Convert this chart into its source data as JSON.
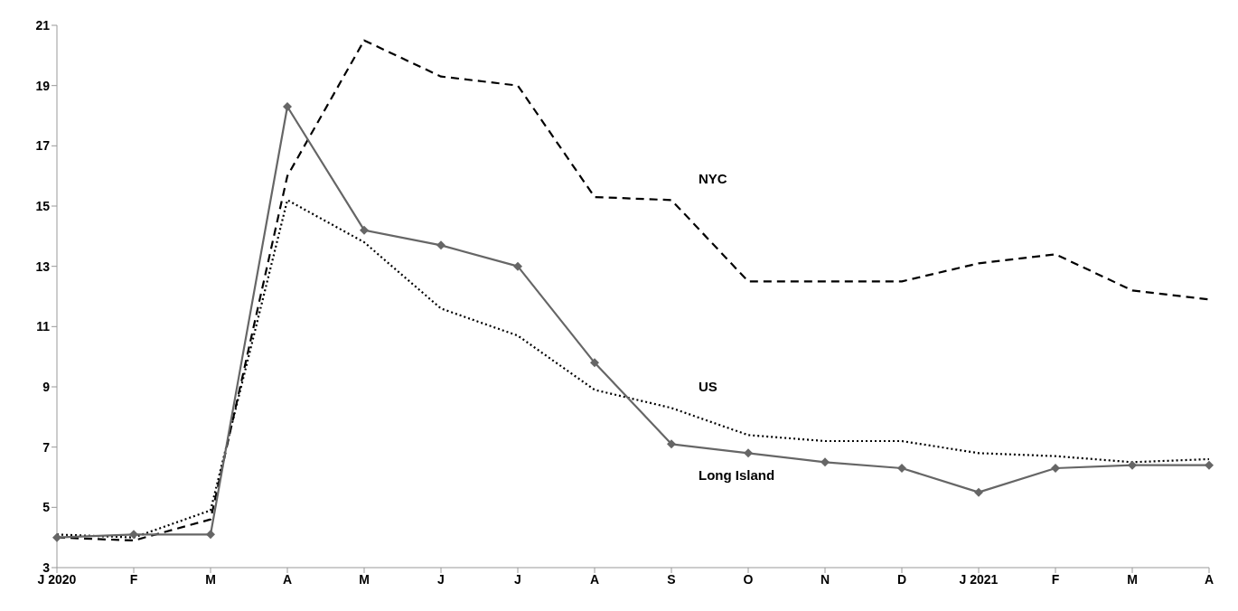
{
  "chart_data": {
    "type": "line",
    "categories": [
      "J 2020",
      "F",
      "M",
      "A",
      "M",
      "J",
      "J",
      "A",
      "S",
      "O",
      "N",
      "D",
      "J 2021",
      "F",
      "M",
      "A"
    ],
    "series": [
      {
        "name": "NYC",
        "color": "#000000",
        "line_style": "dashed",
        "marker": "none",
        "values": [
          4.0,
          3.9,
          4.6,
          16.0,
          20.5,
          19.3,
          19.0,
          15.3,
          15.2,
          12.5,
          12.5,
          12.5,
          13.1,
          13.4,
          12.2,
          11.9
        ]
      },
      {
        "name": "US",
        "color": "#000000",
        "line_style": "dotted",
        "marker": "none",
        "values": [
          4.1,
          4.0,
          4.9,
          15.2,
          13.8,
          11.6,
          10.7,
          8.9,
          8.3,
          7.4,
          7.2,
          7.2,
          6.8,
          6.7,
          6.5,
          6.6
        ]
      },
      {
        "name": "Long Island",
        "color": "#666666",
        "line_style": "solid",
        "marker": "diamond",
        "values": [
          4.0,
          4.1,
          4.1,
          18.3,
          14.2,
          13.7,
          13.0,
          9.8,
          7.1,
          6.8,
          6.5,
          6.3,
          5.5,
          6.3,
          6.4,
          6.4
        ]
      }
    ],
    "ylim": [
      3,
      21
    ],
    "yticks": [
      3,
      5,
      7,
      9,
      11,
      13,
      15,
      17,
      19,
      21
    ],
    "grid": false
  }
}
